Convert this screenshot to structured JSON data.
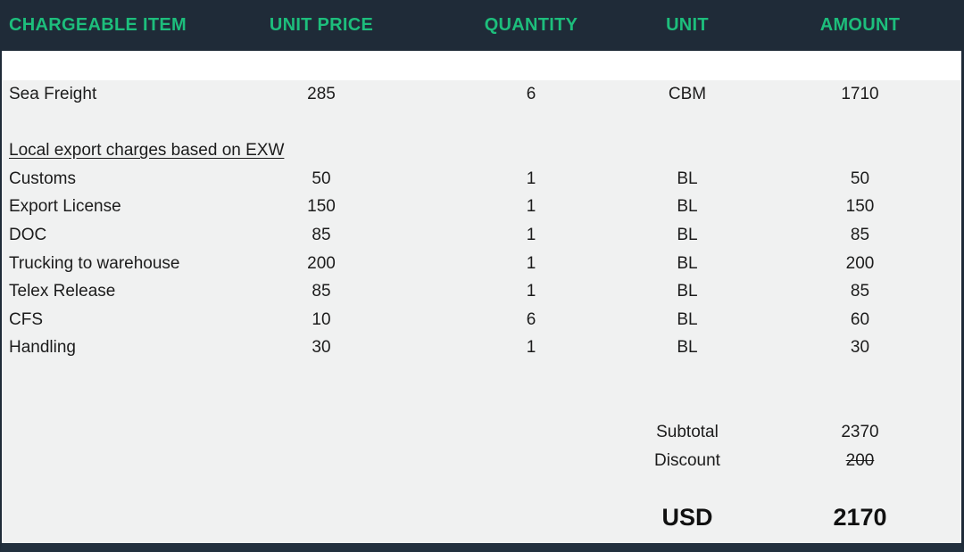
{
  "colors": {
    "header_bg": "#1F2B38",
    "header_text": "#1DBE7C",
    "body_bg": "#F0F1F1",
    "body_text": "#1C1C1C",
    "border": "#22303E",
    "white_row": "#FFFFFF"
  },
  "table": {
    "columns": [
      {
        "label": "CHARGEABLE ITEM",
        "align": "left"
      },
      {
        "label": "UNIT PRICE",
        "align": "center"
      },
      {
        "label": "QUANTITY",
        "align": "center"
      },
      {
        "label": "UNIT",
        "align": "center"
      },
      {
        "label": "AMOUNT",
        "align": "center"
      }
    ],
    "rows": [
      {
        "item": "Sea Freight",
        "unit_price": "285",
        "quantity": "6",
        "unit": "CBM",
        "amount": "1710"
      },
      {
        "type": "spacer"
      },
      {
        "type": "section",
        "item": "Local export charges based on EXW"
      },
      {
        "item": "Customs",
        "unit_price": "50",
        "quantity": "1",
        "unit": "BL",
        "amount": "50"
      },
      {
        "item": "Export License",
        "unit_price": "150",
        "quantity": "1",
        "unit": "BL",
        "amount": "150"
      },
      {
        "item": "DOC",
        "unit_price": "85",
        "quantity": "1",
        "unit": "BL",
        "amount": "85"
      },
      {
        "item": "Trucking to warehouse",
        "unit_price": "200",
        "quantity": "1",
        "unit": "BL",
        "amount": "200"
      },
      {
        "item": "Telex Release",
        "unit_price": "85",
        "quantity": "1",
        "unit": "BL",
        "amount": "85"
      },
      {
        "item": "CFS",
        "unit_price": "10",
        "quantity": "6",
        "unit": "BL",
        "amount": "60"
      },
      {
        "item": "Handling",
        "unit_price": "30",
        "quantity": "1",
        "unit": "BL",
        "amount": "30"
      }
    ],
    "summary": {
      "subtotal_label": "Subtotal",
      "subtotal_value": "2370",
      "discount_label": "Discount",
      "discount_value": "200",
      "currency_label": "USD",
      "total_value": "2170"
    }
  }
}
